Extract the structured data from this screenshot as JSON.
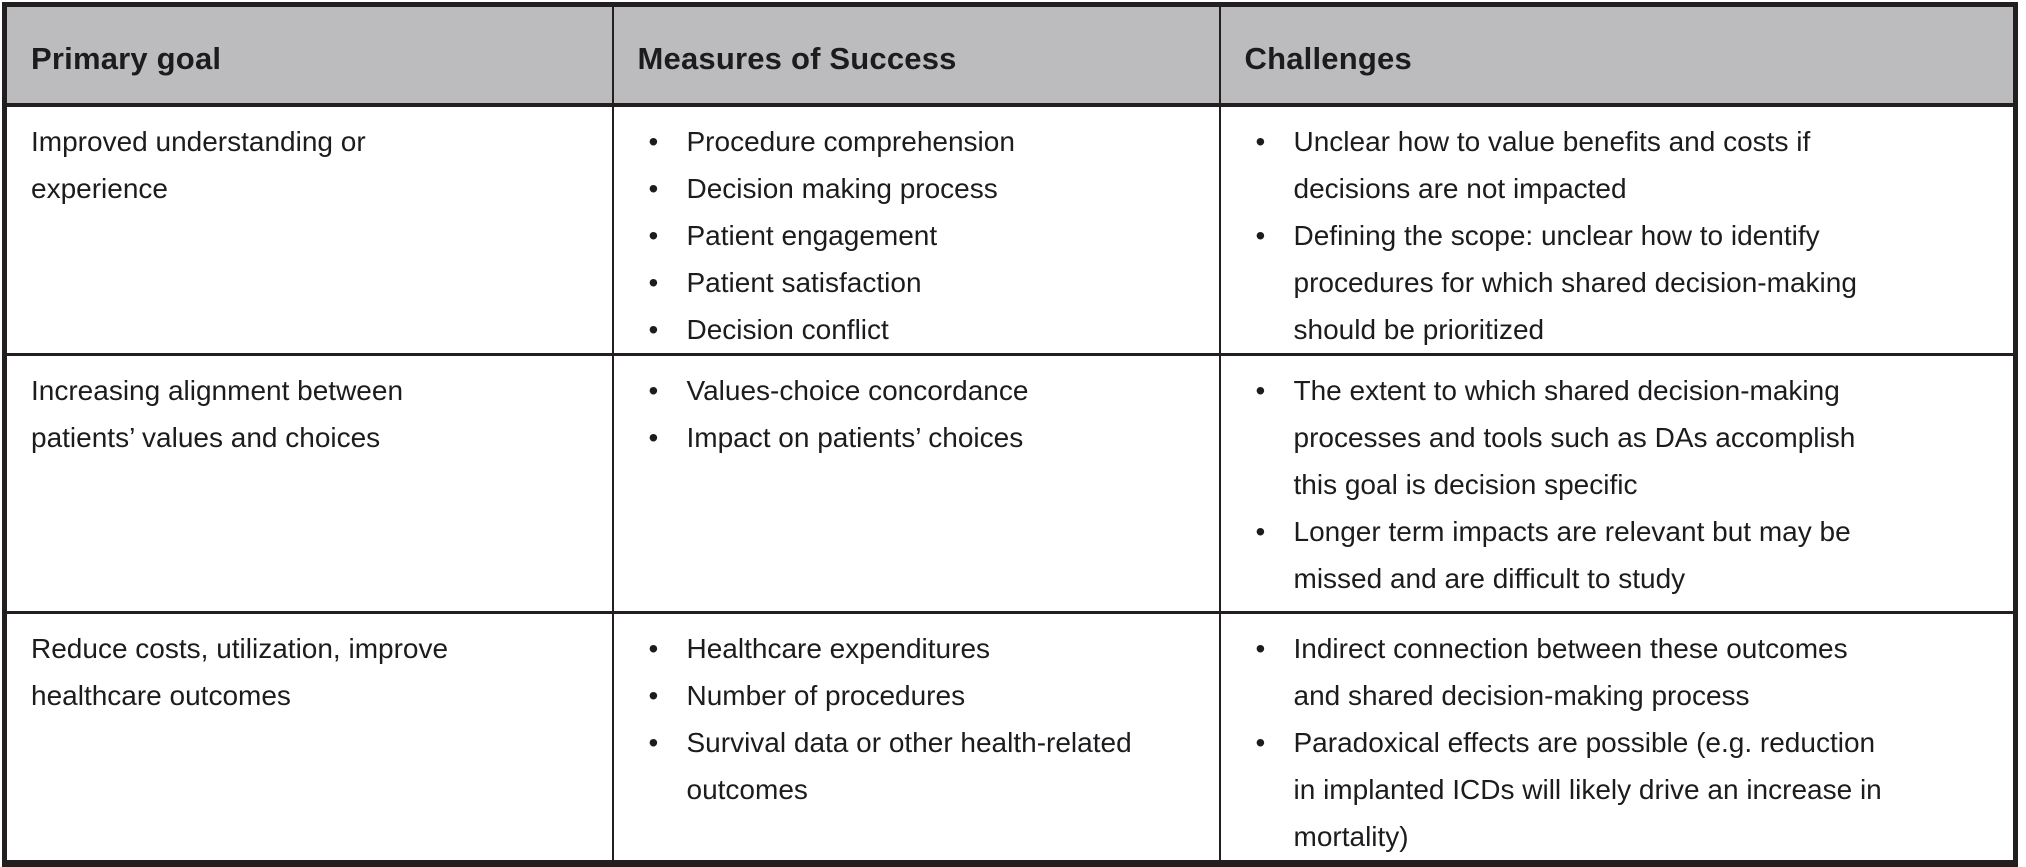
{
  "colors": {
    "header_bg": "#bcbcbe",
    "border": "#231f20",
    "text": "#1c1c1e",
    "cell_bg": "#ffffff"
  },
  "icons": {
    "bullet": "•"
  },
  "table": {
    "columns": [
      {
        "id": "goal",
        "label": "Primary goal"
      },
      {
        "id": "measures",
        "label": "Measures of Success"
      },
      {
        "id": "challenges",
        "label": "Challenges"
      }
    ],
    "rows": [
      {
        "goal": "Improved understanding or experience",
        "measures": [
          "Procedure comprehension",
          "Decision making process",
          "Patient engagement",
          "Patient satisfaction",
          "Decision conflict"
        ],
        "challenges": [
          "Unclear how to value benefits and costs if decisions are not impacted",
          "Defining the scope: unclear how to identify procedures for which shared decision-making should be prioritized"
        ]
      },
      {
        "goal": "Increasing alignment between patients’ values and choices",
        "measures": [
          "Values-choice concordance",
          "Impact on patients’ choices"
        ],
        "challenges": [
          "The extent to which shared decision-making processes and tools such as DAs accomplish this goal is decision specific",
          "Longer term impacts are relevant but may be missed and are difficult to study"
        ]
      },
      {
        "goal": "Reduce costs, utilization, improve healthcare outcomes",
        "measures": [
          "Healthcare expenditures",
          "Number of procedures",
          "Survival data or other health-related outcomes"
        ],
        "challenges": [
          "Indirect connection between these outcomes and shared decision-making process",
          "Paradoxical effects are possible (e.g. reduction in implanted ICDs will likely drive an increase in mortality)"
        ]
      }
    ]
  }
}
